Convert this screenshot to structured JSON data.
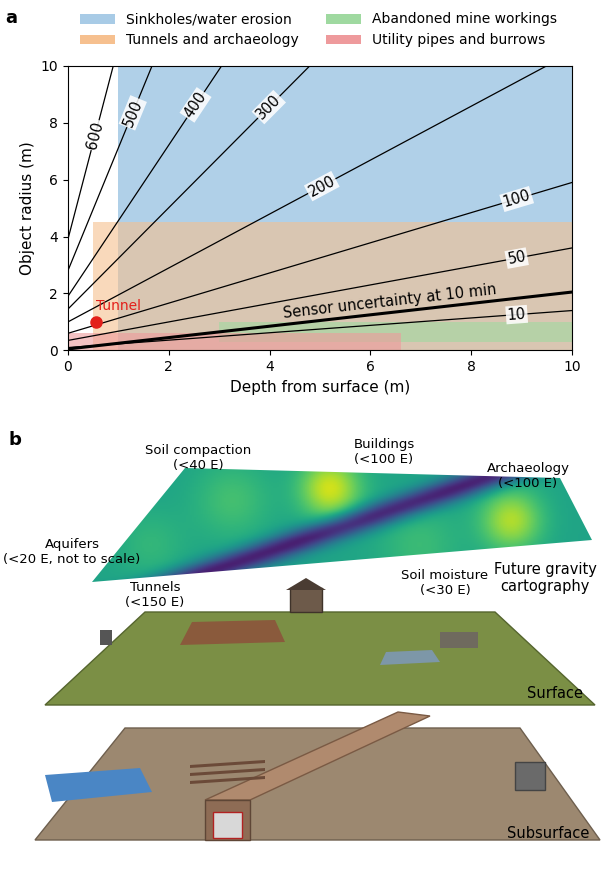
{
  "panel_labels": [
    "a",
    "b"
  ],
  "chart_data": {
    "type": "line",
    "xlabel": "Depth from surface (m)",
    "ylabel": "Object radius (m)",
    "xlim": [
      0,
      10
    ],
    "ylim": [
      0,
      10
    ],
    "xticks": [
      0,
      2,
      4,
      6,
      8,
      10
    ],
    "yticks": [
      0,
      2,
      4,
      6,
      8,
      10
    ],
    "legend": "upper center",
    "regions": [
      {
        "name": "Sinkholes/water erosion",
        "color": "#a8cbe6",
        "x": [
          1,
          10
        ],
        "y": [
          0,
          10
        ]
      },
      {
        "name": "Tunnels and archaeology",
        "color": "#f6c08f",
        "x": [
          0.5,
          10
        ],
        "y": [
          0,
          4.5
        ]
      },
      {
        "name": "Abandoned mine workings",
        "color": "#9fd9a0",
        "x": [
          3,
          10
        ],
        "y": [
          0.3,
          1.0
        ]
      },
      {
        "name": "Utility pipes and burrows",
        "color": "#ee9a9c",
        "x": [
          0,
          6.6
        ],
        "y": [
          0,
          0.6
        ]
      }
    ],
    "series": [
      {
        "name": "600",
        "color": "#000000",
        "line_style": "solid",
        "x": [
          0,
          0.9
        ],
        "values": [
          3.9,
          10
        ]
      },
      {
        "name": "500",
        "color": "#000000",
        "line_style": "solid",
        "x": [
          0,
          1.67
        ],
        "values": [
          2.8,
          10
        ]
      },
      {
        "name": "400",
        "color": "#000000",
        "line_style": "solid",
        "x": [
          0,
          3.05
        ],
        "values": [
          1.9,
          10
        ]
      },
      {
        "name": "300",
        "color": "#000000",
        "line_style": "solid",
        "x": [
          0,
          4.8
        ],
        "values": [
          1.45,
          10
        ]
      },
      {
        "name": "200",
        "color": "#000000",
        "line_style": "solid",
        "x": [
          0,
          9.5
        ],
        "values": [
          1.0,
          10
        ]
      },
      {
        "name": "100",
        "color": "#000000",
        "line_style": "solid",
        "x": [
          0,
          10
        ],
        "values": [
          0.6,
          5.9
        ]
      },
      {
        "name": "50",
        "color": "#000000",
        "line_style": "solid",
        "x": [
          0,
          10
        ],
        "values": [
          0.35,
          3.6
        ]
      },
      {
        "name": "Sensor uncertainty at 10 min",
        "color": "#000000",
        "line_style": "thick",
        "x": [
          0,
          10
        ],
        "values": [
          0.05,
          2.05
        ]
      },
      {
        "name": "10",
        "color": "#000000",
        "line_style": "solid",
        "x": [
          0,
          10
        ],
        "values": [
          0.1,
          1.4
        ]
      }
    ],
    "points": [
      {
        "name": "Tunnel",
        "x": 0.55,
        "y": 1.0,
        "color": "#e3201b",
        "marker": "o"
      }
    ]
  },
  "illustration": {
    "map_labels": [
      "Soil compaction\n(<40 E)",
      "Buildings\n(<100 E)",
      "Archaeology\n(<100 E)",
      "Aquifers\n(<20 E, not to scale)",
      "Tunnels\n(<150 E)",
      "Soil moisture\n(<30 E)"
    ],
    "map_title": "Future gravity\ncartography",
    "layer_labels": [
      "Surface",
      "Subsurface"
    ]
  }
}
